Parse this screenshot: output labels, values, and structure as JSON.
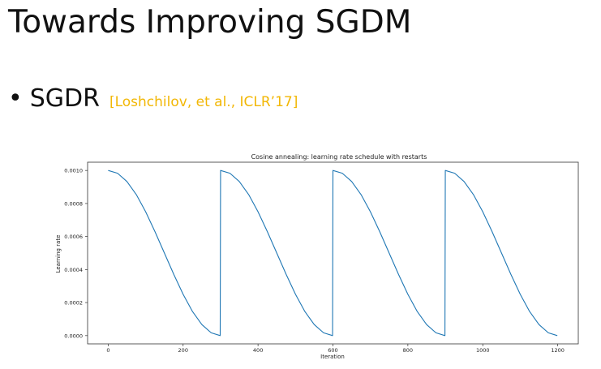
{
  "slide": {
    "title": "Towards Improving SGDM",
    "bullet": "•",
    "term": "SGDR",
    "citation": "[Loshchilov, et al., ICLR’17]"
  },
  "chart_data": {
    "type": "line",
    "title": "Cosine annealing: learning rate schedule with restarts",
    "xlabel": "Iteration",
    "ylabel": "Learning rate",
    "xlim": [
      -55,
      1255
    ],
    "ylim": [
      -5e-05,
      0.00105
    ],
    "xticks": [
      0,
      200,
      400,
      600,
      800,
      1000,
      1200
    ],
    "xtick_labels": [
      "0",
      "200",
      "400",
      "600",
      "800",
      "1000",
      "1200"
    ],
    "yticks": [
      0,
      0.0002,
      0.0004,
      0.0006,
      0.0008,
      0.001
    ],
    "ytick_labels": [
      "0.0000",
      "0.0002",
      "0.0004",
      "0.0006",
      "0.0008",
      "0.0010"
    ],
    "grid": false,
    "legend": "none",
    "line_color": "#1f77b4",
    "series": [
      {
        "x": [
          0,
          25,
          50,
          75,
          100,
          125,
          150,
          175,
          200,
          225,
          250,
          275,
          299,
          300,
          325,
          350,
          375,
          400,
          425,
          450,
          475,
          500,
          525,
          550,
          575,
          599,
          600,
          625,
          650,
          675,
          700,
          725,
          750,
          775,
          800,
          825,
          850,
          875,
          899,
          900,
          925,
          950,
          975,
          1000,
          1025,
          1050,
          1075,
          1100,
          1125,
          1150,
          1175,
          1199
        ],
        "y": [
          0.001,
          0.000983,
          0.000933,
          0.000854,
          0.00075,
          0.000629,
          0.0005,
          0.000371,
          0.00025,
          0.000146,
          6.7e-05,
          1.7e-05,
          0.0,
          0.001,
          0.000983,
          0.000933,
          0.000854,
          0.00075,
          0.000629,
          0.0005,
          0.000371,
          0.00025,
          0.000146,
          6.7e-05,
          1.7e-05,
          0.0,
          0.001,
          0.000983,
          0.000933,
          0.000854,
          0.00075,
          0.000629,
          0.0005,
          0.000371,
          0.00025,
          0.000146,
          6.7e-05,
          1.7e-05,
          0.0,
          0.001,
          0.000983,
          0.000933,
          0.000854,
          0.00075,
          0.000629,
          0.0005,
          0.000371,
          0.00025,
          0.000146,
          6.7e-05,
          1.7e-05,
          0.0
        ]
      }
    ]
  }
}
